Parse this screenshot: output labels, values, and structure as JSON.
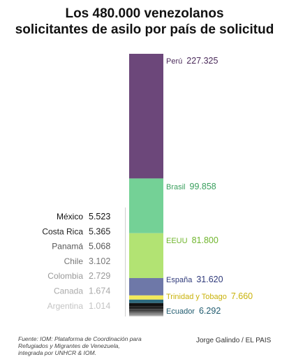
{
  "title": {
    "line1": "Los 480.000 venezolanos",
    "line2": "solicitantes de asilo por país de solicitud"
  },
  "chart_data": {
    "type": "bar",
    "stacked": true,
    "orientation": "vertical",
    "title": "Los 480.000 venezolanos solicitantes de asilo por país de solicitud",
    "total": 480000,
    "series": [
      {
        "name": "Perú",
        "label": "227.325",
        "value": 227325,
        "color": "#6c477a",
        "label_color": "#4a2a5a",
        "side": "right"
      },
      {
        "name": "Brasil",
        "label": "99.858",
        "value": 99858,
        "color": "#74d196",
        "label_color": "#3aa05e",
        "side": "right"
      },
      {
        "name": "EEUU",
        "label": "81.800",
        "value": 81800,
        "color": "#b2e373",
        "label_color": "#6fb52c",
        "side": "right"
      },
      {
        "name": "España",
        "label": "31.620",
        "value": 31620,
        "color": "#6e78a8",
        "label_color": "#2f3a7a",
        "side": "right"
      },
      {
        "name": "Trinidad y Tobago",
        "label": "7.660",
        "value": 7660,
        "color": "#f2e95c",
        "label_color": "#c9b20a",
        "side": "right"
      },
      {
        "name": "Ecuador",
        "label": "6.292",
        "value": 6292,
        "color": "#2d6a7e",
        "label_color": "#1f5a6e",
        "side": "right"
      },
      {
        "name": "México",
        "label": "5.523",
        "value": 5523,
        "color": "#111111",
        "label_color": "#111111",
        "side": "left"
      },
      {
        "name": "Costa Rica",
        "label": "5.365",
        "value": 5365,
        "color": "#222222",
        "label_color": "#222222",
        "side": "left"
      },
      {
        "name": "Panamá",
        "label": "5.068",
        "value": 5068,
        "color": "#444444",
        "label_color": "#555555",
        "side": "left"
      },
      {
        "name": "Chile",
        "label": "3.102",
        "value": 3102,
        "color": "#666666",
        "label_color": "#777777",
        "side": "left"
      },
      {
        "name": "Colombia",
        "label": "2.729",
        "value": 2729,
        "color": "#888888",
        "label_color": "#999999",
        "side": "left"
      },
      {
        "name": "Canada",
        "label": "1.674",
        "value": 1674,
        "color": "#aaaaaa",
        "label_color": "#aaaaaa",
        "side": "left"
      },
      {
        "name": "Argentina",
        "label": "1.014",
        "value": 1014,
        "color": "#cccccc",
        "label_color": "#c4c4c4",
        "side": "left"
      }
    ]
  },
  "footer": {
    "source_line1": "Fuente: IOM: Plataforma de Coordinación para",
    "source_line2": "Refugiados y Migrantes de Venezuela,",
    "source_line3": "integrada por UNHCR & IOM.",
    "credit": "Jorge Galindo / EL PAIS"
  },
  "colors": {
    "bracket": "#cfcfcf",
    "background": "#ffffff"
  }
}
